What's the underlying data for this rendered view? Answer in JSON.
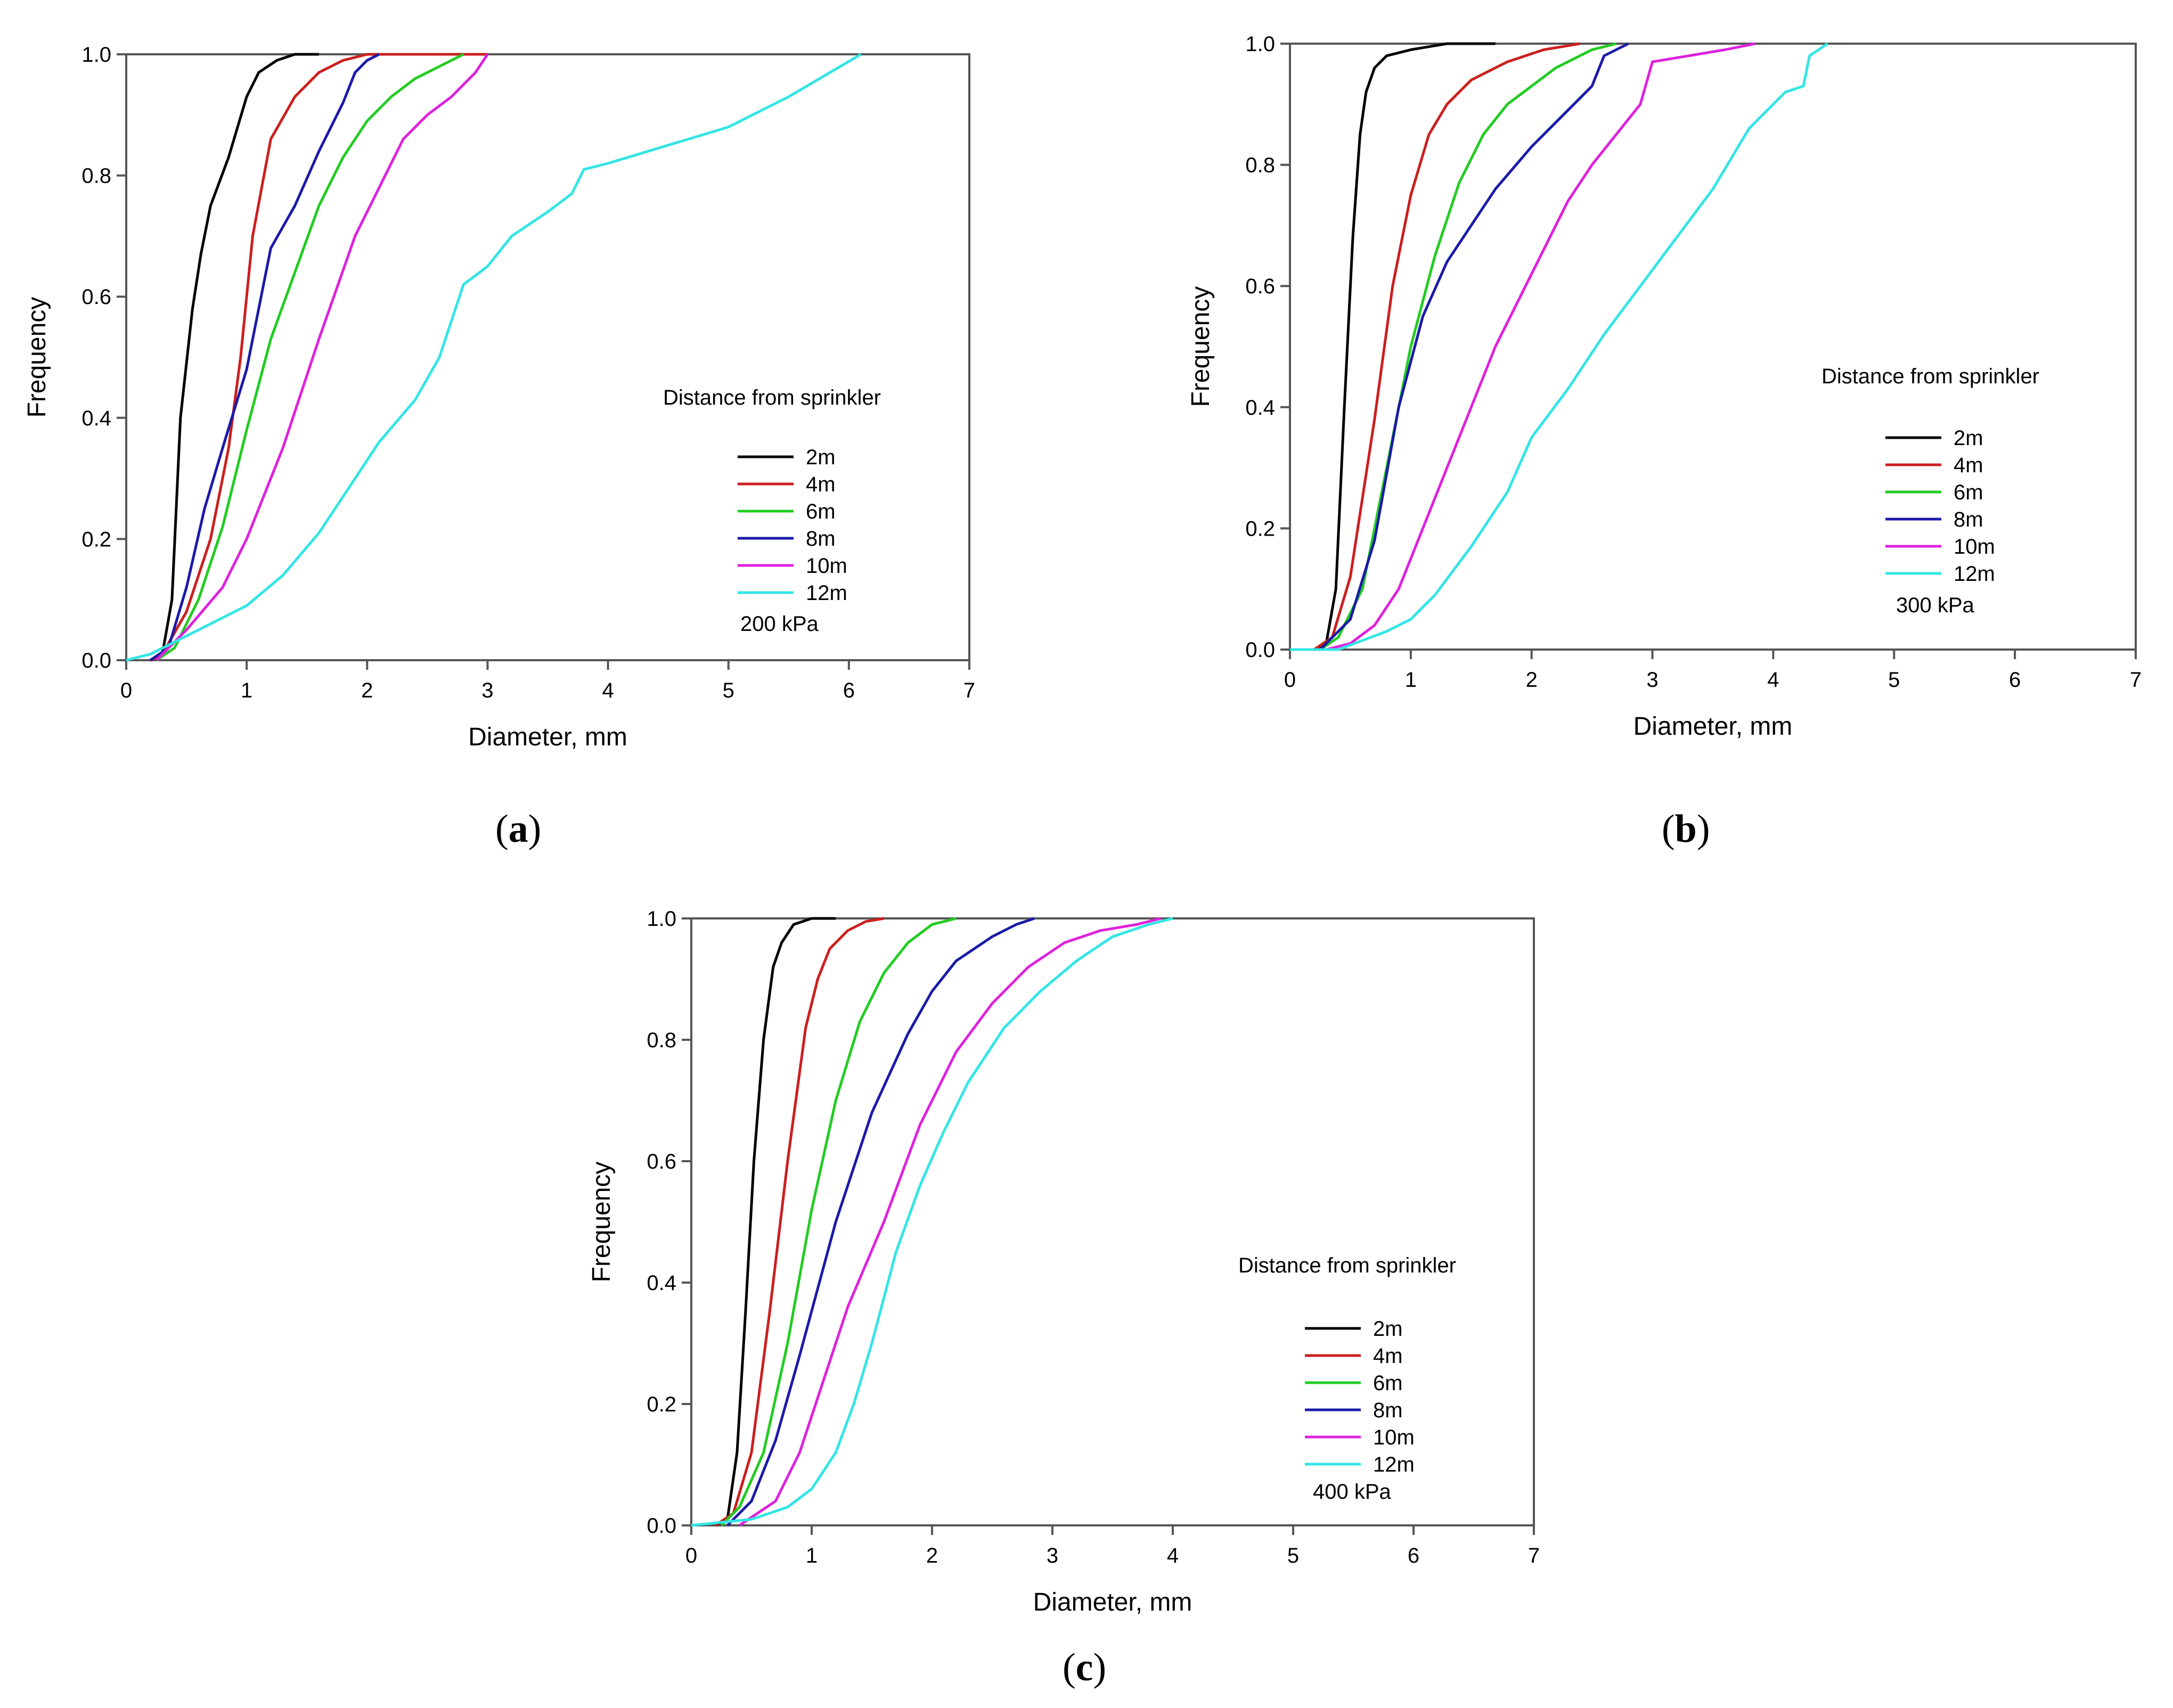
{
  "figure": {
    "panel_labels": [
      "a",
      "b",
      "c"
    ],
    "colors": {
      "2m": "#000000",
      "4m": "#cc1f1f",
      "6m": "#22cc22",
      "8m": "#1a1aa8",
      "10m": "#dd22dd",
      "12m": "#33e5e5",
      "axis": "#555555"
    }
  },
  "chart_data": [
    {
      "type": "line",
      "panel": "a",
      "xlabel": "Diameter, mm",
      "ylabel": "Frequency",
      "xlim": [
        0,
        7
      ],
      "ylim": [
        0,
        1.0
      ],
      "xticks": [
        "0",
        "1",
        "2",
        "3",
        "4",
        "5",
        "6",
        "7"
      ],
      "yticks": [
        "0.0",
        "0.2",
        "0.4",
        "0.6",
        "0.8",
        "1.0"
      ],
      "legend_title": "Distance from sprinkler",
      "annotation": "200 kPa",
      "series": [
        {
          "name": "2m",
          "x": [
            0.2,
            0.3,
            0.38,
            0.45,
            0.55,
            0.62,
            0.7,
            0.85,
            1.0,
            1.1,
            1.25,
            1.4,
            1.6
          ],
          "y": [
            0,
            0.01,
            0.1,
            0.4,
            0.58,
            0.67,
            0.75,
            0.83,
            0.93,
            0.97,
            0.99,
            1.0,
            1.0
          ]
        },
        {
          "name": "4m",
          "x": [
            0.2,
            0.3,
            0.5,
            0.7,
            0.85,
            0.95,
            1.05,
            1.2,
            1.4,
            1.6,
            1.8,
            2.0,
            2.5,
            3.0
          ],
          "y": [
            0,
            0.01,
            0.08,
            0.2,
            0.35,
            0.5,
            0.7,
            0.86,
            0.93,
            0.97,
            0.99,
            1.0,
            1.0,
            1.0
          ]
        },
        {
          "name": "6m",
          "x": [
            0.25,
            0.4,
            0.6,
            0.8,
            1.0,
            1.2,
            1.4,
            1.6,
            1.8,
            2.0,
            2.2,
            2.4,
            2.6,
            2.8
          ],
          "y": [
            0,
            0.02,
            0.1,
            0.22,
            0.38,
            0.53,
            0.64,
            0.75,
            0.83,
            0.89,
            0.93,
            0.96,
            0.98,
            1.0
          ]
        },
        {
          "name": "8m",
          "x": [
            0.2,
            0.35,
            0.5,
            0.65,
            0.8,
            1.0,
            1.2,
            1.4,
            1.6,
            1.8,
            1.9,
            2.0,
            2.1
          ],
          "y": [
            0,
            0.02,
            0.12,
            0.25,
            0.35,
            0.48,
            0.68,
            0.75,
            0.84,
            0.92,
            0.97,
            0.99,
            1.0
          ]
        },
        {
          "name": "10m",
          "x": [
            0.25,
            0.5,
            0.8,
            1.0,
            1.3,
            1.6,
            1.9,
            2.1,
            2.3,
            2.5,
            2.7,
            2.9,
            3.0
          ],
          "y": [
            0,
            0.05,
            0.12,
            0.2,
            0.35,
            0.53,
            0.7,
            0.78,
            0.86,
            0.9,
            0.93,
            0.97,
            1.0
          ]
        },
        {
          "name": "12m",
          "x": [
            0,
            0.2,
            0.5,
            0.8,
            1.0,
            1.3,
            1.6,
            1.9,
            2.1,
            2.4,
            2.6,
            2.8,
            3.0,
            3.2,
            3.5,
            3.7,
            3.8,
            4.0,
            4.5,
            5.0,
            5.5,
            6.1
          ],
          "y": [
            0,
            0.01,
            0.04,
            0.07,
            0.09,
            0.14,
            0.21,
            0.3,
            0.36,
            0.43,
            0.5,
            0.62,
            0.65,
            0.7,
            0.74,
            0.77,
            0.81,
            0.82,
            0.85,
            0.88,
            0.93,
            1.0
          ]
        }
      ]
    },
    {
      "type": "line",
      "panel": "b",
      "xlabel": "Diameter, mm",
      "ylabel": "Frequency",
      "xlim": [
        0,
        7
      ],
      "ylim": [
        0,
        1.0
      ],
      "xticks": [
        "0",
        "1",
        "2",
        "3",
        "4",
        "5",
        "6",
        "7"
      ],
      "yticks": [
        "0.0",
        "0.2",
        "0.4",
        "0.6",
        "0.8",
        "1.0"
      ],
      "legend_title": "Distance from sprinkler",
      "annotation": "300 kPa",
      "series": [
        {
          "name": "2m",
          "x": [
            0.2,
            0.3,
            0.38,
            0.45,
            0.52,
            0.58,
            0.63,
            0.7,
            0.8,
            1.0,
            1.3,
            1.7
          ],
          "y": [
            0,
            0.01,
            0.1,
            0.4,
            0.68,
            0.85,
            0.92,
            0.96,
            0.98,
            0.99,
            1.0,
            1.0
          ]
        },
        {
          "name": "4m",
          "x": [
            0.2,
            0.35,
            0.5,
            0.7,
            0.85,
            1.0,
            1.15,
            1.3,
            1.5,
            1.8,
            2.1,
            2.4
          ],
          "y": [
            0,
            0.02,
            0.12,
            0.38,
            0.6,
            0.75,
            0.85,
            0.9,
            0.94,
            0.97,
            0.99,
            1.0
          ]
        },
        {
          "name": "6m",
          "x": [
            0.25,
            0.4,
            0.6,
            0.8,
            1.0,
            1.2,
            1.4,
            1.6,
            1.8,
            2.0,
            2.2,
            2.5,
            2.7
          ],
          "y": [
            0,
            0.02,
            0.1,
            0.3,
            0.5,
            0.65,
            0.77,
            0.85,
            0.9,
            0.93,
            0.96,
            0.99,
            1.0
          ]
        },
        {
          "name": "8m",
          "x": [
            0.25,
            0.5,
            0.7,
            0.9,
            1.1,
            1.3,
            1.5,
            1.7,
            2.0,
            2.3,
            2.5,
            2.6,
            2.8
          ],
          "y": [
            0,
            0.05,
            0.18,
            0.4,
            0.55,
            0.64,
            0.7,
            0.76,
            0.83,
            0.89,
            0.93,
            0.98,
            1.0
          ]
        },
        {
          "name": "10m",
          "x": [
            0.3,
            0.5,
            0.7,
            0.9,
            1.1,
            1.4,
            1.7,
            2.0,
            2.3,
            2.5,
            2.7,
            2.9,
            3.0,
            3.3,
            3.6,
            3.85
          ],
          "y": [
            0,
            0.01,
            0.04,
            0.1,
            0.2,
            0.35,
            0.5,
            0.62,
            0.74,
            0.8,
            0.85,
            0.9,
            0.97,
            0.98,
            0.99,
            1.0
          ]
        },
        {
          "name": "12m",
          "x": [
            0,
            0.4,
            0.8,
            1.0,
            1.2,
            1.5,
            1.8,
            2.0,
            2.3,
            2.6,
            2.9,
            3.2,
            3.5,
            3.8,
            4.1,
            4.25,
            4.3,
            4.45
          ],
          "y": [
            0,
            0.0,
            0.03,
            0.05,
            0.09,
            0.17,
            0.26,
            0.35,
            0.43,
            0.52,
            0.6,
            0.68,
            0.76,
            0.86,
            0.92,
            0.93,
            0.98,
            1.0
          ]
        }
      ]
    },
    {
      "type": "line",
      "panel": "c",
      "xlabel": "Diameter, mm",
      "ylabel": "Frequency",
      "xlim": [
        0,
        7
      ],
      "ylim": [
        0,
        1.0
      ],
      "xticks": [
        "0",
        "1",
        "2",
        "3",
        "4",
        "5",
        "6",
        "7"
      ],
      "yticks": [
        "0.0",
        "0.2",
        "0.4",
        "0.6",
        "0.8",
        "1.0"
      ],
      "legend_title": "Distance from sprinkler",
      "annotation": "400 kPa",
      "series": [
        {
          "name": "2m",
          "x": [
            0.2,
            0.3,
            0.38,
            0.45,
            0.52,
            0.6,
            0.68,
            0.75,
            0.85,
            1.0,
            1.2
          ],
          "y": [
            0,
            0.01,
            0.12,
            0.35,
            0.6,
            0.8,
            0.92,
            0.96,
            0.99,
            1.0,
            1.0
          ]
        },
        {
          "name": "4m",
          "x": [
            0.2,
            0.35,
            0.5,
            0.65,
            0.8,
            0.95,
            1.05,
            1.15,
            1.3,
            1.45,
            1.6
          ],
          "y": [
            0,
            0.02,
            0.12,
            0.35,
            0.6,
            0.82,
            0.9,
            0.95,
            0.98,
            0.995,
            1.0
          ]
        },
        {
          "name": "6m",
          "x": [
            0.25,
            0.4,
            0.6,
            0.8,
            1.0,
            1.2,
            1.4,
            1.6,
            1.8,
            2.0,
            2.2
          ],
          "y": [
            0,
            0.03,
            0.12,
            0.3,
            0.52,
            0.7,
            0.83,
            0.91,
            0.96,
            0.99,
            1.0
          ]
        },
        {
          "name": "8m",
          "x": [
            0.3,
            0.5,
            0.7,
            0.9,
            1.2,
            1.5,
            1.8,
            2.0,
            2.2,
            2.5,
            2.7,
            2.85
          ],
          "y": [
            0,
            0.04,
            0.14,
            0.28,
            0.5,
            0.68,
            0.81,
            0.88,
            0.93,
            0.97,
            0.99,
            1.0
          ]
        },
        {
          "name": "10m",
          "x": [
            0.4,
            0.7,
            0.9,
            1.1,
            1.3,
            1.6,
            1.9,
            2.2,
            2.5,
            2.8,
            3.1,
            3.4,
            3.7,
            3.9
          ],
          "y": [
            0,
            0.04,
            0.12,
            0.24,
            0.36,
            0.5,
            0.66,
            0.78,
            0.86,
            0.92,
            0.96,
            0.98,
            0.99,
            1.0
          ]
        },
        {
          "name": "12m",
          "x": [
            0,
            0.5,
            0.8,
            1.0,
            1.2,
            1.35,
            1.5,
            1.7,
            1.9,
            2.1,
            2.3,
            2.6,
            2.9,
            3.2,
            3.5,
            3.8,
            4.0
          ],
          "y": [
            0,
            0.01,
            0.03,
            0.06,
            0.12,
            0.2,
            0.3,
            0.45,
            0.56,
            0.65,
            0.73,
            0.82,
            0.88,
            0.93,
            0.97,
            0.99,
            1.0
          ]
        }
      ]
    }
  ]
}
